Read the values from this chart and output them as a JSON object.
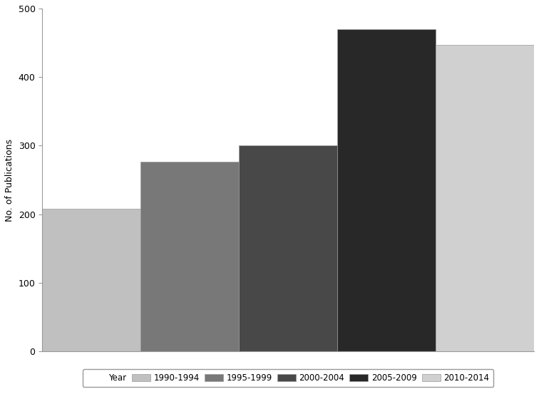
{
  "categories": [
    "1990-1994",
    "1995-1999",
    "2000-2004",
    "2005-2009",
    "2010-2014"
  ],
  "values": [
    208,
    277,
    301,
    470,
    447
  ],
  "bar_colors": [
    "#c0c0c0",
    "#787878",
    "#484848",
    "#282828",
    "#d0d0d0"
  ],
  "ylabel": "No. of Publications",
  "ylim": [
    0,
    500
  ],
  "yticks": [
    0,
    100,
    200,
    300,
    400,
    500
  ],
  "legend_label": "Year",
  "background_color": "#ffffff",
  "bar_width": 1.0,
  "spine_color": "#999999"
}
